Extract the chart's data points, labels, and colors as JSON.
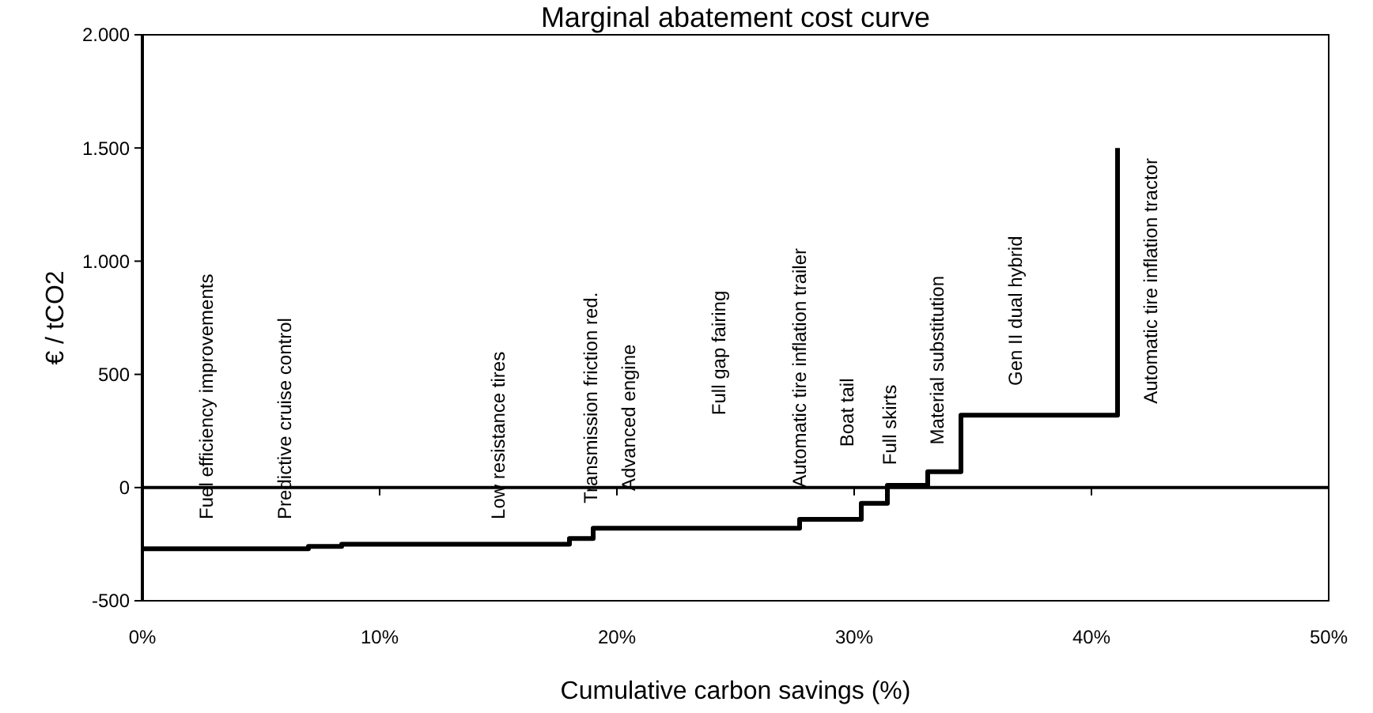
{
  "chart_data": {
    "type": "step",
    "title": "Marginal abatement cost curve",
    "xlabel": "Cumulative carbon savings (%)",
    "ylabel": "€ / tCO2",
    "x": [
      0,
      7.0,
      8.4,
      18.0,
      19.0,
      27.7,
      30.3,
      31.4,
      33.1,
      34.5,
      41.1
    ],
    "series": [
      {
        "color": "#000000",
        "values": [
          -270,
          -260,
          -250,
          -225,
          -180,
          -140,
          -70,
          10,
          70,
          320,
          1500
        ]
      }
    ],
    "xlim": [
      0,
      50
    ],
    "xticks": [
      {
        "value": 0,
        "label": "0%"
      },
      {
        "value": 10,
        "label": "10%"
      },
      {
        "value": 20,
        "label": "20%"
      },
      {
        "value": 30,
        "label": "30%"
      },
      {
        "value": 40,
        "label": "40%"
      },
      {
        "value": 50,
        "label": "50%"
      }
    ],
    "ylim": [
      -500,
      2000
    ],
    "yticks": [
      {
        "value": -500,
        "label": "-500"
      },
      {
        "value": 0,
        "label": "0"
      },
      {
        "value": 500,
        "label": "500"
      },
      {
        "value": 1000,
        "label": "1.000"
      },
      {
        "value": 1500,
        "label": "1.500"
      },
      {
        "value": 2000,
        "label": "2.000"
      }
    ],
    "ref_lines": [
      {
        "axis": "y",
        "value": 0,
        "color": "#000000"
      }
    ],
    "grid": false,
    "line_style": "solid",
    "marker": "none",
    "annotations": [
      "Fuel efficiency improvements",
      "Predictive cruise control",
      "Low resistance tires",
      "Transmission friction red.",
      "Advanced engine",
      "Full gap fairing",
      "Automatic tire inflation trailer",
      "Boat tail",
      "Full skirts",
      "Material substitution",
      "Gen II dual hybrid",
      "Automatic tire inflation tractor"
    ]
  }
}
